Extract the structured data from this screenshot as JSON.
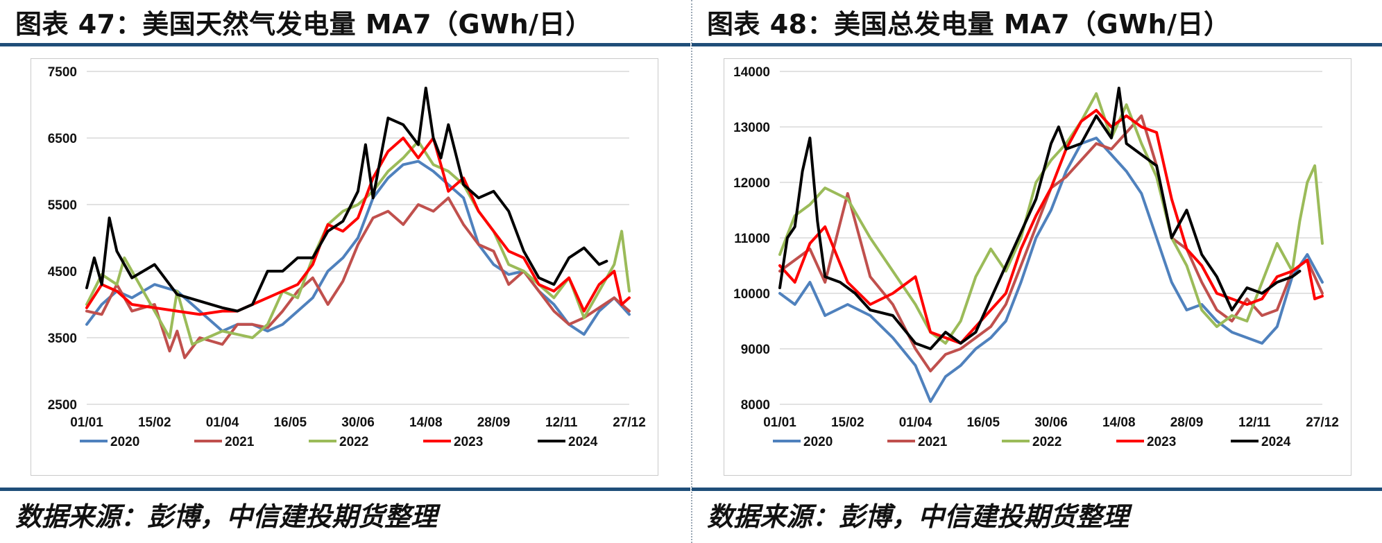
{
  "left": {
    "title": "图表 47：美国天然气发电量 MA7（GWh/日）",
    "source": "数据来源：彭博，中信建投期货整理",
    "chart_data": {
      "type": "line",
      "title": "美国天然气发电量 MA7（GWh/日）",
      "xlabel": "",
      "ylabel": "",
      "x_tick_labels": [
        "01/01",
        "15/02",
        "01/04",
        "16/05",
        "30/06",
        "14/08",
        "28/09",
        "12/11",
        "27/12"
      ],
      "y_ticks": [
        2500,
        3500,
        4500,
        5500,
        6500,
        7500
      ],
      "ylim": [
        2500,
        7500
      ],
      "xlim": [
        0,
        360
      ],
      "grid": "horizontal",
      "legend_position": "bottom",
      "series": [
        {
          "name": "2020",
          "color": "#4f81bd",
          "x": [
            0,
            10,
            20,
            30,
            45,
            60,
            75,
            90,
            100,
            110,
            120,
            130,
            140,
            150,
            160,
            170,
            180,
            190,
            200,
            210,
            220,
            230,
            240,
            250,
            260,
            270,
            280,
            290,
            300,
            310,
            320,
            330,
            340,
            350,
            360
          ],
          "values": [
            3700,
            4000,
            4200,
            4100,
            4300,
            4200,
            3900,
            3600,
            3700,
            3700,
            3600,
            3700,
            3900,
            4100,
            4500,
            4700,
            5000,
            5600,
            5900,
            6100,
            6150,
            6000,
            5800,
            5600,
            4900,
            4600,
            4450,
            4500,
            4200,
            4000,
            3700,
            3550,
            3900,
            4100,
            3850
          ]
        },
        {
          "name": "2021",
          "color": "#c0504d",
          "x": [
            0,
            10,
            20,
            30,
            45,
            55,
            60,
            65,
            75,
            90,
            100,
            110,
            120,
            130,
            140,
            150,
            160,
            170,
            180,
            190,
            200,
            210,
            220,
            230,
            240,
            250,
            260,
            270,
            280,
            290,
            300,
            310,
            320,
            330,
            340,
            350,
            360
          ],
          "values": [
            3900,
            3850,
            4300,
            3900,
            4000,
            3300,
            3600,
            3200,
            3500,
            3400,
            3700,
            3700,
            3650,
            3900,
            4200,
            4400,
            4000,
            4350,
            4900,
            5300,
            5400,
            5200,
            5500,
            5400,
            5600,
            5200,
            4900,
            4800,
            4300,
            4500,
            4200,
            3900,
            3700,
            3800,
            3950,
            4100,
            3900
          ]
        },
        {
          "name": "2022",
          "color": "#9bbb59",
          "x": [
            0,
            10,
            20,
            25,
            30,
            45,
            55,
            60,
            70,
            80,
            90,
            100,
            110,
            120,
            130,
            140,
            150,
            160,
            170,
            180,
            190,
            200,
            210,
            220,
            230,
            240,
            250,
            260,
            270,
            280,
            290,
            300,
            310,
            320,
            330,
            340,
            350,
            355,
            360
          ],
          "values": [
            4000,
            4450,
            4300,
            4700,
            4500,
            3900,
            3500,
            4200,
            3400,
            3500,
            3600,
            3550,
            3500,
            3700,
            4200,
            4100,
            4700,
            5200,
            5400,
            5500,
            5700,
            6000,
            6200,
            6450,
            6100,
            6000,
            5800,
            5400,
            5100,
            4600,
            4500,
            4300,
            4100,
            4400,
            3800,
            4200,
            4600,
            5100,
            4200
          ]
        },
        {
          "name": "2023",
          "color": "#ff0000",
          "x": [
            0,
            10,
            20,
            30,
            45,
            60,
            75,
            90,
            100,
            110,
            120,
            130,
            140,
            150,
            160,
            170,
            180,
            190,
            200,
            210,
            220,
            230,
            240,
            250,
            260,
            270,
            280,
            290,
            300,
            310,
            320,
            330,
            340,
            350,
            355,
            360
          ],
          "values": [
            3950,
            4300,
            4200,
            4000,
            3950,
            3900,
            3850,
            3900,
            3900,
            4000,
            4100,
            4200,
            4300,
            4600,
            5200,
            5100,
            5300,
            5900,
            6300,
            6500,
            6200,
            6500,
            5700,
            5900,
            5400,
            5100,
            4800,
            4700,
            4300,
            4200,
            4400,
            3900,
            4300,
            4500,
            4000,
            4100
          ]
        },
        {
          "name": "2024",
          "color": "#000000",
          "x": [
            0,
            5,
            10,
            15,
            20,
            30,
            45,
            60,
            75,
            90,
            100,
            110,
            120,
            130,
            140,
            150,
            160,
            170,
            180,
            185,
            190,
            200,
            210,
            220,
            225,
            230,
            235,
            240,
            250,
            260,
            270,
            280,
            290,
            300,
            310,
            320,
            330,
            340,
            345
          ],
          "values": [
            4250,
            4700,
            4300,
            5300,
            4800,
            4400,
            4600,
            4150,
            4050,
            3950,
            3900,
            4000,
            4500,
            4500,
            4700,
            4700,
            5100,
            5250,
            5700,
            6400,
            5600,
            6800,
            6700,
            6400,
            7250,
            6500,
            6200,
            6700,
            5800,
            5600,
            5700,
            5400,
            4800,
            4400,
            4300,
            4700,
            4850,
            4600,
            4650
          ]
        }
      ]
    }
  },
  "right": {
    "title": "图表 48：美国总发电量 MA7（GWh/日）",
    "source": "数据来源：彭博，中信建投期货整理",
    "chart_data": {
      "type": "line",
      "title": "美国总发电量 MA7（GWh/日）",
      "xlabel": "",
      "ylabel": "",
      "x_tick_labels": [
        "01/01",
        "15/02",
        "01/04",
        "16/05",
        "30/06",
        "14/08",
        "28/09",
        "12/11",
        "27/12"
      ],
      "y_ticks": [
        8000,
        9000,
        10000,
        11000,
        12000,
        13000,
        14000
      ],
      "ylim": [
        8000,
        14000
      ],
      "xlim": [
        0,
        360
      ],
      "grid": "horizontal",
      "legend_position": "bottom",
      "series": [
        {
          "name": "2020",
          "color": "#4f81bd",
          "x": [
            0,
            10,
            20,
            30,
            45,
            60,
            75,
            90,
            100,
            110,
            120,
            130,
            140,
            150,
            160,
            170,
            180,
            190,
            200,
            210,
            220,
            230,
            240,
            250,
            260,
            270,
            280,
            290,
            300,
            310,
            320,
            330,
            340,
            350,
            360
          ],
          "values": [
            10000,
            9800,
            10200,
            9600,
            9800,
            9600,
            9200,
            8700,
            8050,
            8500,
            8700,
            9000,
            9200,
            9500,
            10200,
            11000,
            11500,
            12200,
            12700,
            12800,
            12500,
            12200,
            11800,
            11000,
            10200,
            9700,
            9800,
            9500,
            9300,
            9200,
            9100,
            9400,
            10300,
            10700,
            10200
          ]
        },
        {
          "name": "2021",
          "color": "#c0504d",
          "x": [
            0,
            10,
            20,
            30,
            45,
            60,
            75,
            90,
            100,
            110,
            120,
            130,
            140,
            150,
            160,
            170,
            180,
            190,
            200,
            210,
            220,
            230,
            240,
            250,
            260,
            270,
            280,
            290,
            300,
            310,
            320,
            330,
            340,
            350,
            360
          ],
          "values": [
            10400,
            10600,
            10800,
            10200,
            11800,
            10300,
            9800,
            9000,
            8600,
            8900,
            9000,
            9200,
            9400,
            9800,
            10500,
            11200,
            11900,
            12100,
            12400,
            12700,
            12600,
            12900,
            13200,
            12300,
            11000,
            10800,
            10200,
            9700,
            9500,
            9900,
            9600,
            9700,
            10400,
            10600,
            10000
          ]
        },
        {
          "name": "2022",
          "color": "#9bbb59",
          "x": [
            0,
            10,
            20,
            30,
            45,
            60,
            75,
            90,
            100,
            110,
            120,
            130,
            140,
            150,
            160,
            170,
            180,
            190,
            200,
            210,
            220,
            230,
            240,
            250,
            260,
            270,
            280,
            290,
            300,
            310,
            320,
            330,
            340,
            345,
            350,
            355,
            360
          ],
          "values": [
            10700,
            11400,
            11600,
            11900,
            11700,
            11000,
            10400,
            9800,
            9300,
            9100,
            9500,
            10300,
            10800,
            10400,
            11000,
            12000,
            12400,
            12700,
            13100,
            13600,
            12800,
            13400,
            12700,
            12100,
            11000,
            10500,
            9700,
            9400,
            9600,
            9500,
            10200,
            10900,
            10400,
            11300,
            12000,
            12300,
            10900
          ]
        },
        {
          "name": "2023",
          "color": "#ff0000",
          "x": [
            0,
            10,
            20,
            30,
            45,
            60,
            75,
            90,
            100,
            110,
            120,
            130,
            140,
            150,
            160,
            170,
            180,
            190,
            200,
            210,
            220,
            230,
            240,
            250,
            260,
            270,
            280,
            290,
            300,
            310,
            320,
            330,
            340,
            350,
            355,
            360
          ],
          "values": [
            10500,
            10200,
            10900,
            11200,
            10200,
            9800,
            10000,
            10300,
            9300,
            9200,
            9100,
            9400,
            9700,
            10000,
            10800,
            11400,
            11900,
            12600,
            13100,
            13300,
            13000,
            13200,
            13000,
            12900,
            11700,
            10800,
            10500,
            10000,
            9900,
            9800,
            9900,
            10300,
            10400,
            10600,
            9900,
            9950
          ]
        },
        {
          "name": "2024",
          "color": "#000000",
          "x": [
            0,
            5,
            10,
            15,
            20,
            25,
            30,
            40,
            50,
            60,
            75,
            90,
            100,
            110,
            120,
            130,
            140,
            150,
            160,
            170,
            180,
            185,
            190,
            200,
            210,
            220,
            225,
            230,
            240,
            250,
            260,
            270,
            280,
            290,
            300,
            310,
            320,
            330,
            340,
            345
          ],
          "values": [
            10100,
            11000,
            11200,
            12200,
            12800,
            11300,
            10300,
            10200,
            10000,
            9700,
            9600,
            9100,
            9000,
            9300,
            9100,
            9300,
            9900,
            10500,
            11100,
            11700,
            12700,
            13000,
            12600,
            12700,
            13200,
            12800,
            13700,
            12700,
            12500,
            12300,
            11000,
            11500,
            10700,
            10300,
            9700,
            10100,
            10000,
            10200,
            10300,
            10400
          ]
        }
      ]
    }
  }
}
